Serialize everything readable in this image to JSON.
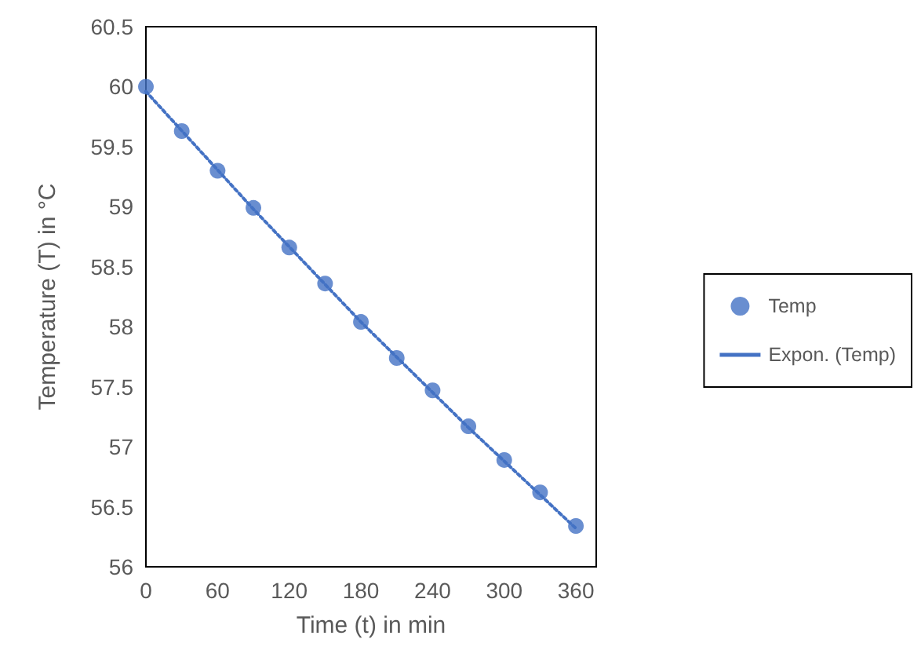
{
  "chart_data": {
    "type": "scatter",
    "xlabel": "Time (t) in min",
    "ylabel": "Temperature (T) in °C",
    "x": [
      0,
      30,
      60,
      90,
      120,
      150,
      180,
      210,
      240,
      270,
      300,
      330,
      360
    ],
    "xlim": [
      0,
      377
    ],
    "xticks": [
      0,
      60,
      120,
      180,
      240,
      300,
      360
    ],
    "ylim": [
      56,
      60.5
    ],
    "yticks": [
      56,
      56.5,
      57,
      57.5,
      58,
      58.5,
      59,
      59.5,
      60,
      60.5
    ],
    "grid": false,
    "legend": "right",
    "series": [
      {
        "name": "Temp",
        "color": "#4472c4",
        "marker": "circle",
        "values": [
          60,
          59.63,
          59.3,
          58.99,
          58.66,
          58.36,
          58.04,
          57.74,
          57.47,
          57.17,
          56.89,
          56.62,
          56.34
        ]
      },
      {
        "name": "Expon. (Temp)",
        "type": "line",
        "color": "#4472c4",
        "marker": "none",
        "line_style": "dotted",
        "x": [
          0,
          90,
          180,
          270,
          360
        ],
        "values": [
          59.96,
          58.98,
          58.04,
          57.16,
          56.32
        ]
      }
    ]
  }
}
